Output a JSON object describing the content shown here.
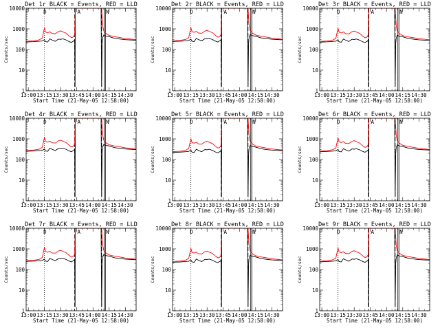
{
  "figure": {
    "footer_xlabel": "Start Time (21-May-05 12:58:00)",
    "ylabel": "Counts/sec"
  },
  "chart_data": [
    {
      "type": "line",
      "title": "Det 1r BLACK = Events, RED = LLD",
      "xlabel": "Start Time (21-May-05 12:58:00)",
      "ylabel": "Counts/sec",
      "y_scale": "log",
      "ylim": [
        1,
        10000
      ],
      "xlim": [
        "13:00",
        "14:40"
      ],
      "x_ticks": [
        "13:00",
        "13:15",
        "13:30",
        "13:45",
        "14:00",
        "14:15",
        "14:30"
      ],
      "y_ticks": [
        "1",
        "10",
        "100",
        "1000",
        "10000"
      ],
      "grid": false,
      "series": [
        {
          "color": "#000000",
          "x": [
            "12:58",
            "13:00",
            "13:05",
            "13:10",
            "13:13",
            "13:15",
            "13:16",
            "13:18",
            "13:20",
            "13:22",
            "13:25",
            "13:28",
            "13:30",
            "13:32",
            "13:35",
            "13:38",
            "13:40",
            "13:41",
            "13:42",
            "13:42.5",
            "13:43",
            "13:43.4",
            "13:43.6",
            "13:44",
            "13:46",
            "13:50",
            "13:55",
            "14:00",
            "14:04",
            "14:06",
            "14:07",
            "14:07.5",
            "14:08",
            "14:08.5",
            "14:09",
            "14:10",
            "14:12",
            "14:15",
            "14:20",
            "14:25",
            "14:30",
            "14:35",
            "14:40"
          ],
          "y": [
            230,
            235,
            240,
            250,
            260,
            300,
            240,
            230,
            330,
            290,
            250,
            320,
            310,
            330,
            290,
            240,
            220,
            240,
            255,
            270,
            300,
            1.5,
            10000,
            10000,
            10000,
            10000,
            10000,
            10000,
            10000,
            10000,
            10000,
            10000,
            1.5,
            200,
            380,
            500,
            450,
            420,
            350,
            320,
            300,
            290,
            280
          ]
        },
        {
          "color": "#ff0000",
          "x": [
            "12:58",
            "13:00",
            "13:05",
            "13:10",
            "13:13",
            "13:15",
            "13:16",
            "13:18",
            "13:20",
            "13:22",
            "13:25",
            "13:28",
            "13:30",
            "13:32",
            "13:35",
            "13:38",
            "13:40",
            "13:41",
            "13:42",
            "13:42.5",
            "13:43",
            "13:43.6",
            "13:44",
            "13:46",
            "13:50",
            "13:55",
            "14:00",
            "14:04",
            "14:06",
            "14:07",
            "14:08",
            "14:09",
            "14:10",
            "14:12",
            "14:15",
            "14:20",
            "14:25",
            "14:30",
            "14:35",
            "14:40"
          ],
          "y": [
            250,
            255,
            265,
            290,
            360,
            1100,
            700,
            650,
            720,
            600,
            580,
            750,
            800,
            720,
            620,
            450,
            380,
            390,
            420,
            470,
            520,
            10000,
            10000,
            10000,
            10000,
            10000,
            10000,
            10000,
            10000,
            10000,
            10000,
            1400,
            800,
            600,
            480,
            420,
            380,
            340,
            320,
            300
          ]
        }
      ],
      "markers": [
        {
          "type": "dotted",
          "x": "13:15"
        },
        {
          "type": "dashed",
          "x": "13:43"
        },
        {
          "type": "dashed",
          "x": "14:08"
        },
        {
          "type": "solid",
          "x": "14:10.5"
        },
        {
          "type": "solid",
          "x": "14:11.5"
        }
      ],
      "annotations": [
        "D",
        "A",
        "N"
      ]
    }
  ]
}
